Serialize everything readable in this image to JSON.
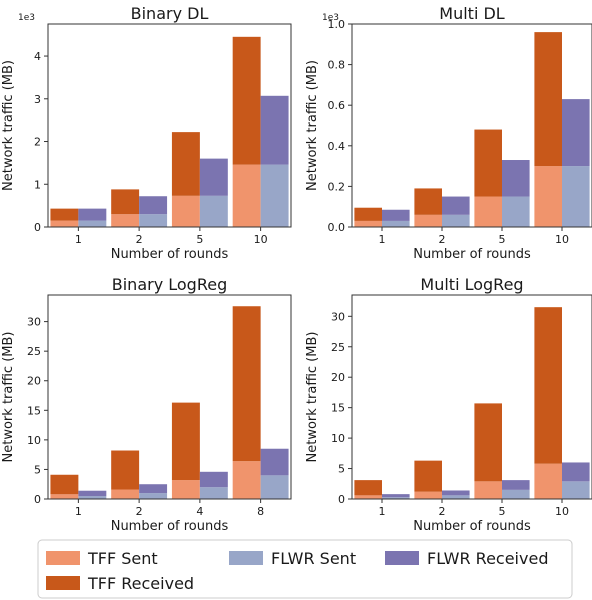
{
  "colors": {
    "tff_sent": "#f0946c",
    "tff_received": "#c8581a",
    "flwr_sent": "#98a6c8",
    "flwr_received": "#7b74b0"
  },
  "legend": {
    "items": [
      {
        "key": "tff_sent",
        "label": "TFF Sent"
      },
      {
        "key": "flwr_sent",
        "label": "FLWR Sent"
      },
      {
        "key": "flwr_received",
        "label": "FLWR Received"
      },
      {
        "key": "tff_received",
        "label": "TFF Received"
      }
    ]
  },
  "chart_data": [
    {
      "type": "bar",
      "title": "Binary DL",
      "xlabel": "Number of rounds",
      "ylabel": "Network traffic (MB)",
      "scale_label": "1e3",
      "ylim": [
        0,
        4.75
      ],
      "yticks": [
        0,
        1,
        2,
        3,
        4
      ],
      "ytick_labels": [
        "0",
        "1",
        "2",
        "3",
        "4"
      ],
      "categories": [
        "1",
        "2",
        "5",
        "10"
      ],
      "series": [
        {
          "name": "TFF Sent",
          "values": [
            0.15,
            0.3,
            0.73,
            1.46
          ]
        },
        {
          "name": "TFF Received",
          "values": [
            0.28,
            0.58,
            1.49,
            2.99
          ]
        },
        {
          "name": "FLWR Sent",
          "values": [
            0.15,
            0.3,
            0.73,
            1.46
          ]
        },
        {
          "name": "FLWR Received",
          "values": [
            0.28,
            0.42,
            0.87,
            1.61
          ]
        }
      ]
    },
    {
      "type": "bar",
      "title": "Multi DL",
      "xlabel": "Number of rounds",
      "ylabel": "Network traffic (MB)",
      "scale_label": "1e3",
      "ylim": [
        0,
        1.0
      ],
      "yticks": [
        0,
        0.2,
        0.4,
        0.6,
        0.8,
        1.0
      ],
      "ytick_labels": [
        "0.0",
        "0.2",
        "0.4",
        "0.6",
        "0.8",
        "1.0"
      ],
      "categories": [
        "1",
        "2",
        "5",
        "10"
      ],
      "series": [
        {
          "name": "TFF Sent",
          "values": [
            0.03,
            0.06,
            0.15,
            0.3
          ]
        },
        {
          "name": "TFF Received",
          "values": [
            0.065,
            0.13,
            0.33,
            0.66
          ]
        },
        {
          "name": "FLWR Sent",
          "values": [
            0.03,
            0.06,
            0.15,
            0.3
          ]
        },
        {
          "name": "FLWR Received",
          "values": [
            0.055,
            0.09,
            0.18,
            0.33
          ]
        }
      ]
    },
    {
      "type": "bar",
      "title": "Binary LogReg",
      "xlabel": "Number of rounds",
      "ylabel": "Network traffic (MB)",
      "ylim": [
        0,
        34.5
      ],
      "yticks": [
        0,
        5,
        10,
        15,
        20,
        25,
        30
      ],
      "ytick_labels": [
        "0",
        "5",
        "10",
        "15",
        "20",
        "25",
        "30"
      ],
      "categories": [
        "1",
        "2",
        "4",
        "8"
      ],
      "series": [
        {
          "name": "TFF Sent",
          "values": [
            0.8,
            1.6,
            3.2,
            6.4
          ]
        },
        {
          "name": "TFF Received",
          "values": [
            3.3,
            6.6,
            13.1,
            26.2
          ]
        },
        {
          "name": "FLWR Sent",
          "values": [
            0.5,
            1.0,
            2.0,
            4.0
          ]
        },
        {
          "name": "FLWR Received",
          "values": [
            0.9,
            1.5,
            2.6,
            4.5
          ]
        }
      ]
    },
    {
      "type": "bar",
      "title": "Multi LogReg",
      "xlabel": "Number of rounds",
      "ylabel": "Network traffic (MB)",
      "ylim": [
        0,
        33.5
      ],
      "yticks": [
        0,
        5,
        10,
        15,
        20,
        25,
        30
      ],
      "ytick_labels": [
        "0",
        "5",
        "10",
        "15",
        "20",
        "25",
        "30"
      ],
      "categories": [
        "1",
        "2",
        "5",
        "10"
      ],
      "series": [
        {
          "name": "TFF Sent",
          "values": [
            0.6,
            1.2,
            2.9,
            5.8
          ]
        },
        {
          "name": "TFF Received",
          "values": [
            2.5,
            5.1,
            12.8,
            25.7
          ]
        },
        {
          "name": "FLWR Sent",
          "values": [
            0.3,
            0.6,
            1.5,
            2.9
          ]
        },
        {
          "name": "FLWR Received",
          "values": [
            0.5,
            0.8,
            1.6,
            3.1
          ]
        }
      ]
    }
  ]
}
